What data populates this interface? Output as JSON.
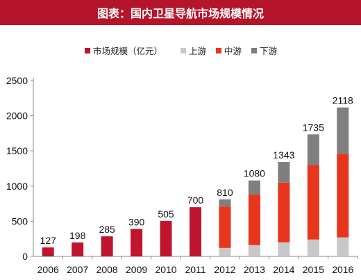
{
  "title": "图表：国内卫星导航市场规模情况",
  "chart_data": {
    "type": "bar",
    "categories": [
      "2006",
      "2007",
      "2008",
      "2009",
      "2010",
      "2011",
      "2012",
      "2013",
      "2014",
      "2015",
      "2016"
    ],
    "ylim": [
      0,
      2500
    ],
    "yticks": [
      0,
      500,
      1000,
      1500,
      2000,
      2500
    ],
    "grid": false,
    "legend": {
      "position": "top"
    },
    "series": [
      {
        "name": "市场规模（亿元）",
        "color": "#c0152f",
        "values": [
          127,
          198,
          285,
          390,
          505,
          700,
          null,
          null,
          null,
          null,
          null
        ]
      },
      {
        "name": "上游",
        "color": "#c8c8c8",
        "values": [
          null,
          null,
          null,
          null,
          null,
          null,
          120,
          160,
          200,
          240,
          270
        ]
      },
      {
        "name": "中游",
        "color": "#e8361d",
        "values": [
          null,
          null,
          null,
          null,
          null,
          null,
          590,
          720,
          850,
          1060,
          1190
        ]
      },
      {
        "name": "下游",
        "color": "#7f7f7f",
        "values": [
          null,
          null,
          null,
          null,
          null,
          null,
          100,
          200,
          293,
          435,
          658
        ]
      }
    ],
    "totals": [
      127,
      198,
      285,
      390,
      505,
      700,
      810,
      1080,
      1343,
      1735,
      2118
    ]
  }
}
